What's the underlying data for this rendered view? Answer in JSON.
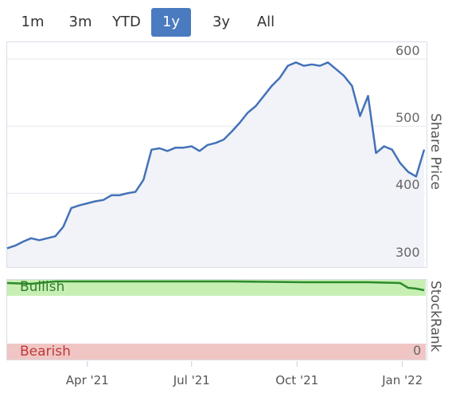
{
  "range_selector": {
    "buttons": [
      {
        "label": "1m"
      },
      {
        "label": "3m"
      },
      {
        "label": "YTD"
      },
      {
        "label": "1y",
        "active": true
      },
      {
        "label": "3y"
      },
      {
        "label": "All"
      }
    ]
  },
  "colors": {
    "line": "#4472b8",
    "fill": "#f1f3f8",
    "grid": "#e3e7ee",
    "bullish_band": "#c8efb3",
    "bullish_text": "#2f7d2f",
    "bearish_band": "#efc6c4",
    "bearish_text": "#c0393b",
    "rank_line": "#2d8a2d",
    "active_button": "#4a7bc0"
  },
  "chart_data": [
    {
      "type": "line",
      "ylabel": "Share Price",
      "ylim": [
        290,
        625
      ],
      "y_ticks": [
        "300",
        "400",
        "500",
        "600"
      ],
      "x_ticks": [
        "Apr '21",
        "Jul '21",
        "Oct '21",
        "Jan '22"
      ],
      "x": [
        "2021-01-21",
        "2021-01-28",
        "2021-02-04",
        "2021-02-11",
        "2021-02-18",
        "2021-02-25",
        "2021-03-04",
        "2021-03-11",
        "2021-03-18",
        "2021-03-25",
        "2021-04-01",
        "2021-04-08",
        "2021-04-15",
        "2021-04-22",
        "2021-04-29",
        "2021-05-06",
        "2021-05-13",
        "2021-05-20",
        "2021-05-27",
        "2021-06-03",
        "2021-06-10",
        "2021-06-17",
        "2021-06-24",
        "2021-07-01",
        "2021-07-08",
        "2021-07-15",
        "2021-07-22",
        "2021-07-29",
        "2021-08-05",
        "2021-08-12",
        "2021-08-19",
        "2021-08-26",
        "2021-09-02",
        "2021-09-09",
        "2021-09-16",
        "2021-09-23",
        "2021-09-30",
        "2021-10-07",
        "2021-10-14",
        "2021-10-21",
        "2021-10-28",
        "2021-11-04",
        "2021-11-11",
        "2021-11-18",
        "2021-11-25",
        "2021-12-02",
        "2021-12-09",
        "2021-12-16",
        "2021-12-23",
        "2021-12-30",
        "2022-01-06",
        "2022-01-13",
        "2022-01-20"
      ],
      "series": [
        {
          "values": [
            318,
            322,
            328,
            333,
            330,
            333,
            336,
            350,
            378,
            382,
            385,
            388,
            390,
            397,
            397,
            400,
            402,
            420,
            465,
            467,
            463,
            468,
            468,
            470,
            463,
            472,
            475,
            480,
            492,
            505,
            520,
            530,
            545,
            560,
            572,
            590,
            595,
            590,
            592,
            590,
            595,
            585,
            575,
            560,
            515,
            545,
            460,
            470,
            465,
            445,
            432,
            425,
            465
          ]
        }
      ]
    },
    {
      "type": "line",
      "ylabel": "StockRank",
      "ylim": [
        0,
        100
      ],
      "y_ticks": [
        "0"
      ],
      "zones": [
        {
          "label": "Bullish",
          "from": 80,
          "to": 100
        },
        {
          "label": "Bearish",
          "from": 0,
          "to": 20
        }
      ],
      "x": [
        "2021-01-21",
        "2021-02-11",
        "2021-03-04",
        "2021-04-15",
        "2021-06-03",
        "2021-08-05",
        "2021-10-07",
        "2021-12-02",
        "2021-12-30",
        "2022-01-06",
        "2022-01-13",
        "2022-01-20"
      ],
      "series": [
        {
          "values": [
            96,
            95,
            98,
            98,
            98,
            98,
            97,
            97,
            96,
            90,
            89,
            87
          ]
        }
      ]
    }
  ]
}
